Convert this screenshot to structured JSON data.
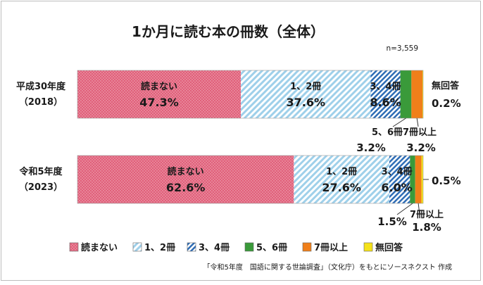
{
  "chart_data": {
    "type": "bar",
    "orientation": "horizontal",
    "stacked": "percent",
    "title": "1か月に読む本の冊数（全体）",
    "sample_size": "n=3,559",
    "categories": [
      {
        "label_line1": "平成30年度",
        "label_line2": "（2018）"
      },
      {
        "label_line1": "令和5年度",
        "label_line2": "（2023）"
      }
    ],
    "series": [
      {
        "name": "読まない",
        "color": "#e0607a",
        "pattern": "dots",
        "values": [
          47.3,
          62.6
        ],
        "labels": [
          "47.3%",
          "62.6%"
        ]
      },
      {
        "name": "1、2冊",
        "color": "#9fd0ea",
        "pattern": "diag-light",
        "values": [
          37.6,
          27.6
        ],
        "labels": [
          "37.6%",
          "27.6%"
        ]
      },
      {
        "name": "3、4冊",
        "color": "#2f6db5",
        "pattern": "diag-dark",
        "values": [
          8.6,
          6.0
        ],
        "labels": [
          "8.6%",
          "6.0%"
        ]
      },
      {
        "name": "5、6冊",
        "color": "#3a9a3a",
        "pattern": "solid",
        "values": [
          3.2,
          1.5
        ],
        "labels": [
          "3.2%",
          "1.5%"
        ]
      },
      {
        "name": "7冊以上",
        "color": "#f07f1a",
        "pattern": "solid",
        "values": [
          3.2,
          1.8
        ],
        "labels": [
          "3.2%",
          "1.8%"
        ]
      },
      {
        "name": "無回答",
        "color": "#f5e21a",
        "pattern": "solid",
        "values": [
          0.2,
          0.5
        ],
        "labels": [
          "0.2%",
          "0.5%"
        ]
      }
    ],
    "legend_position": "bottom",
    "xlim": [
      0,
      100
    ],
    "grid": false,
    "source": "「令和5年度　国語に関する世論調査」（文化庁）をもとにソースネクスト 作成"
  },
  "chart_labels": {
    "row_2018": {
      "inside": [
        "読まない",
        "1、2冊",
        "3、4冊"
      ],
      "outside": [
        "5、6冊",
        "7冊以上",
        "無回答"
      ]
    },
    "row_2023": {
      "inside": [
        "読まない",
        "1、2冊",
        "3、4冊"
      ],
      "outside": [
        "7冊以上"
      ]
    }
  }
}
